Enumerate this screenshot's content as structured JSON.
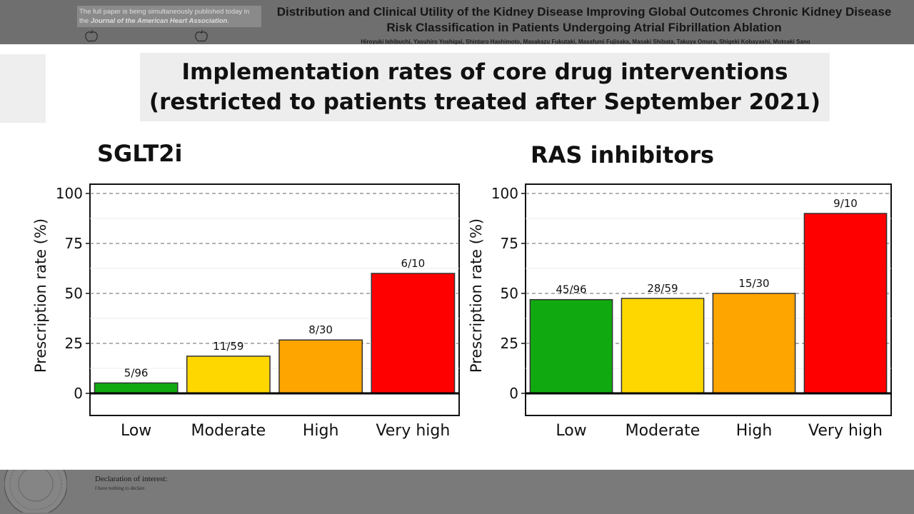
{
  "header": {
    "publication_note_prefix": "The full paper is being simultaneously published today in the",
    "publication_note_journal": "Journal of the American Heart Association",
    "publication_note_suffix": ".",
    "paper_title": "Distribution and Clinical Utility of the Kidney Disease Improving Global Outcomes Chronic Kidney Disease Risk Classification in Patients Undergoing Atrial Fibrillation Ablation",
    "authors": "Hiroyuki Ishibuchi, Yasuhiro Yoshigai, Shintaro Hashimoto, Masakazu Fukutaki, Masafumi Fujisaka, Masaki Shibata, Takuya Omura, Shigeki Kobayashi, Motoaki Sano"
  },
  "main_title": {
    "line1": "Implementation rates of core drug interventions",
    "line2": "(restricted to patients treated after September 2021)"
  },
  "footer": {
    "declaration_heading": "Declaration of interest:",
    "declaration_text": "I have nothing to declare"
  },
  "icons": {
    "header_left": "apple-icon",
    "header_right": "apple-icon",
    "footer_seal": "seal-emblem-icon"
  },
  "chart_data": [
    {
      "type": "bar",
      "title": "SGLT2i",
      "ylabel": "Prescription rate (%)",
      "xlabel": "",
      "categories": [
        "Low",
        "Moderate",
        "High",
        "Very high"
      ],
      "values": [
        5.2,
        18.6,
        26.7,
        60.0
      ],
      "bar_labels": [
        "5/96",
        "11/59",
        "8/30",
        "6/10"
      ],
      "colors": [
        "#10aa10",
        "#ffd700",
        "#ffa500",
        "#ff0000"
      ],
      "ylim": [
        0,
        100
      ],
      "yticks": [
        "0",
        "25",
        "50",
        "75",
        "100"
      ],
      "grid": "dashed horizontal at 25, 50, 75, 100"
    },
    {
      "type": "bar",
      "title": "RAS inhibitors",
      "ylabel": "Prescription rate (%)",
      "xlabel": "",
      "categories": [
        "Low",
        "Moderate",
        "High",
        "Very high"
      ],
      "values": [
        46.9,
        47.5,
        50.0,
        90.0
      ],
      "bar_labels": [
        "45/96",
        "28/59",
        "15/30",
        "9/10"
      ],
      "colors": [
        "#10aa10",
        "#ffd700",
        "#ffa500",
        "#ff0000"
      ],
      "ylim": [
        0,
        100
      ],
      "yticks": [
        "0",
        "25",
        "50",
        "75",
        "100"
      ],
      "grid": "dashed horizontal at 25, 50, 75, 100"
    }
  ]
}
